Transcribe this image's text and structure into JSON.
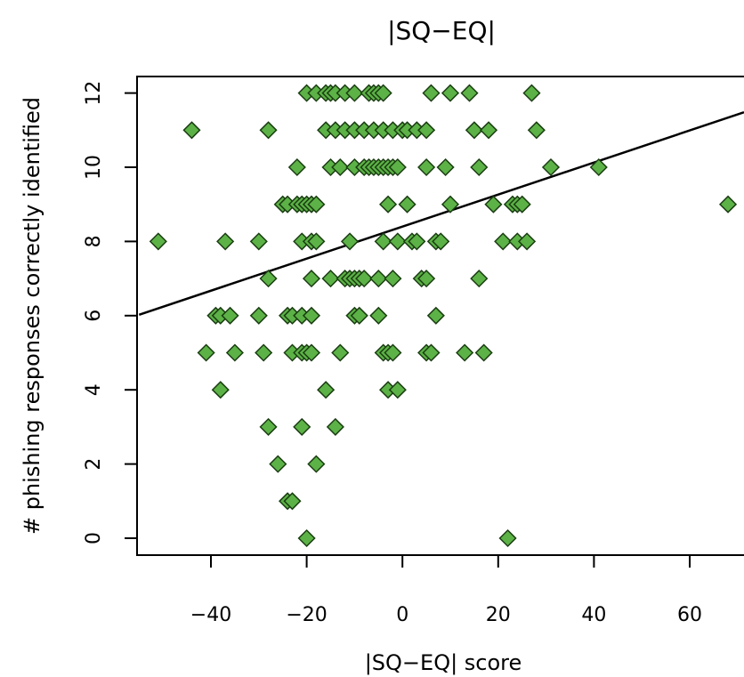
{
  "chart_data": {
    "type": "scatter",
    "title": "|SQ−EQ|",
    "xlabel": "|SQ−EQ| score",
    "ylabel": "# phishing responses correctly identified",
    "xlim": [
      -55,
      70
    ],
    "ylim": [
      -0.5,
      12.5
    ],
    "xticks": [
      -40,
      -20,
      0,
      20,
      40,
      60
    ],
    "xtick_labels": [
      "−40",
      "−20",
      "0",
      "20",
      "40",
      "60"
    ],
    "yticks": [
      0,
      2,
      4,
      6,
      8,
      10,
      12
    ],
    "ytick_labels": [
      "0",
      "2",
      "4",
      "6",
      "8",
      "10",
      "12"
    ],
    "grid": false,
    "marker": "diamond",
    "marker_color": "#5cb246",
    "marker_edge": "#1a3d12",
    "trendline": {
      "intercept": 8.4,
      "slope": 0.0432,
      "color": "#000000"
    },
    "points": [
      {
        "x": -20,
        "y": 12
      },
      {
        "x": -18,
        "y": 12
      },
      {
        "x": -16,
        "y": 12
      },
      {
        "x": -15,
        "y": 12
      },
      {
        "x": -14,
        "y": 12
      },
      {
        "x": -12,
        "y": 12
      },
      {
        "x": -10,
        "y": 12
      },
      {
        "x": -7,
        "y": 12
      },
      {
        "x": -6,
        "y": 12
      },
      {
        "x": -5,
        "y": 12
      },
      {
        "x": -4,
        "y": 12
      },
      {
        "x": 6,
        "y": 12
      },
      {
        "x": 10,
        "y": 12
      },
      {
        "x": 14,
        "y": 12
      },
      {
        "x": 27,
        "y": 12
      },
      {
        "x": -44,
        "y": 11
      },
      {
        "x": -28,
        "y": 11
      },
      {
        "x": -16,
        "y": 11
      },
      {
        "x": -14,
        "y": 11
      },
      {
        "x": -12,
        "y": 11
      },
      {
        "x": -10,
        "y": 11
      },
      {
        "x": -8,
        "y": 11
      },
      {
        "x": -6,
        "y": 11
      },
      {
        "x": -4,
        "y": 11
      },
      {
        "x": -2,
        "y": 11
      },
      {
        "x": 0,
        "y": 11
      },
      {
        "x": 1,
        "y": 11
      },
      {
        "x": 3,
        "y": 11
      },
      {
        "x": 5,
        "y": 11
      },
      {
        "x": 15,
        "y": 11
      },
      {
        "x": 18,
        "y": 11
      },
      {
        "x": 28,
        "y": 11
      },
      {
        "x": -22,
        "y": 10
      },
      {
        "x": -15,
        "y": 10
      },
      {
        "x": -13,
        "y": 10
      },
      {
        "x": -10,
        "y": 10
      },
      {
        "x": -8,
        "y": 10
      },
      {
        "x": -7,
        "y": 10
      },
      {
        "x": -6,
        "y": 10
      },
      {
        "x": -5,
        "y": 10
      },
      {
        "x": -4,
        "y": 10
      },
      {
        "x": -3,
        "y": 10
      },
      {
        "x": -2,
        "y": 10
      },
      {
        "x": -1,
        "y": 10
      },
      {
        "x": 5,
        "y": 10
      },
      {
        "x": 9,
        "y": 10
      },
      {
        "x": 16,
        "y": 10
      },
      {
        "x": 31,
        "y": 10
      },
      {
        "x": 41,
        "y": 10
      },
      {
        "x": -25,
        "y": 9
      },
      {
        "x": -24,
        "y": 9
      },
      {
        "x": -22,
        "y": 9
      },
      {
        "x": -21,
        "y": 9
      },
      {
        "x": -20,
        "y": 9
      },
      {
        "x": -19,
        "y": 9
      },
      {
        "x": -18,
        "y": 9
      },
      {
        "x": -3,
        "y": 9
      },
      {
        "x": 1,
        "y": 9
      },
      {
        "x": 10,
        "y": 9
      },
      {
        "x": 19,
        "y": 9
      },
      {
        "x": 23,
        "y": 9
      },
      {
        "x": 24,
        "y": 9
      },
      {
        "x": 25,
        "y": 9
      },
      {
        "x": 68,
        "y": 9
      },
      {
        "x": -51,
        "y": 8
      },
      {
        "x": -37,
        "y": 8
      },
      {
        "x": -30,
        "y": 8
      },
      {
        "x": -21,
        "y": 8
      },
      {
        "x": -19,
        "y": 8
      },
      {
        "x": -18,
        "y": 8
      },
      {
        "x": -11,
        "y": 8
      },
      {
        "x": -4,
        "y": 8
      },
      {
        "x": -1,
        "y": 8
      },
      {
        "x": 2,
        "y": 8
      },
      {
        "x": 3,
        "y": 8
      },
      {
        "x": 7,
        "y": 8
      },
      {
        "x": 8,
        "y": 8
      },
      {
        "x": 21,
        "y": 8
      },
      {
        "x": 24,
        "y": 8
      },
      {
        "x": 26,
        "y": 8
      },
      {
        "x": -28,
        "y": 7
      },
      {
        "x": -19,
        "y": 7
      },
      {
        "x": -15,
        "y": 7
      },
      {
        "x": -12,
        "y": 7
      },
      {
        "x": -11,
        "y": 7
      },
      {
        "x": -10,
        "y": 7
      },
      {
        "x": -9,
        "y": 7
      },
      {
        "x": -8,
        "y": 7
      },
      {
        "x": -5,
        "y": 7
      },
      {
        "x": -2,
        "y": 7
      },
      {
        "x": 4,
        "y": 7
      },
      {
        "x": 5,
        "y": 7
      },
      {
        "x": 16,
        "y": 7
      },
      {
        "x": -39,
        "y": 6
      },
      {
        "x": -38,
        "y": 6
      },
      {
        "x": -36,
        "y": 6
      },
      {
        "x": -30,
        "y": 6
      },
      {
        "x": -24,
        "y": 6
      },
      {
        "x": -23,
        "y": 6
      },
      {
        "x": -21,
        "y": 6
      },
      {
        "x": -19,
        "y": 6
      },
      {
        "x": -10,
        "y": 6
      },
      {
        "x": -9,
        "y": 6
      },
      {
        "x": -5,
        "y": 6
      },
      {
        "x": 7,
        "y": 6
      },
      {
        "x": -41,
        "y": 5
      },
      {
        "x": -35,
        "y": 5
      },
      {
        "x": -29,
        "y": 5
      },
      {
        "x": -23,
        "y": 5
      },
      {
        "x": -21,
        "y": 5
      },
      {
        "x": -20,
        "y": 5
      },
      {
        "x": -19,
        "y": 5
      },
      {
        "x": -13,
        "y": 5
      },
      {
        "x": -4,
        "y": 5
      },
      {
        "x": -3,
        "y": 5
      },
      {
        "x": -2,
        "y": 5
      },
      {
        "x": 5,
        "y": 5
      },
      {
        "x": 6,
        "y": 5
      },
      {
        "x": 13,
        "y": 5
      },
      {
        "x": 17,
        "y": 5
      },
      {
        "x": -38,
        "y": 4
      },
      {
        "x": -16,
        "y": 4
      },
      {
        "x": -3,
        "y": 4
      },
      {
        "x": -1,
        "y": 4
      },
      {
        "x": -28,
        "y": 3
      },
      {
        "x": -21,
        "y": 3
      },
      {
        "x": -14,
        "y": 3
      },
      {
        "x": -26,
        "y": 2
      },
      {
        "x": -18,
        "y": 2
      },
      {
        "x": -24,
        "y": 1
      },
      {
        "x": -23,
        "y": 1
      },
      {
        "x": -20,
        "y": 0
      },
      {
        "x": 22,
        "y": 0
      }
    ]
  }
}
